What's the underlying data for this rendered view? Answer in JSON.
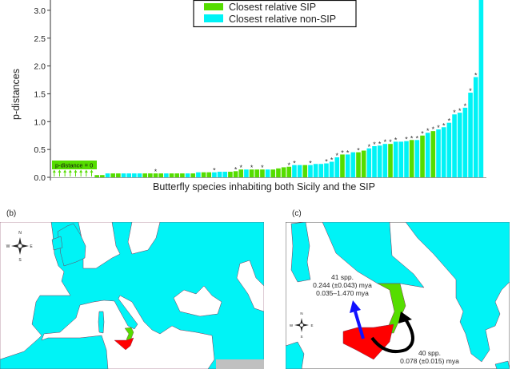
{
  "colors": {
    "sip": "#55dd00",
    "non_sip": "#00f3f6",
    "sicily": "#ff0000",
    "calabria": "#55dd00",
    "arrow_to_sardinia_side": "#1010ff",
    "arrow_to_sip": "#000000",
    "no_data_region": "#c0c0c0"
  },
  "chart_data": {
    "type": "bar",
    "title": "",
    "xlabel": "Butterfly species inhabiting both Sicily and the SIP",
    "ylabel": "p-distances",
    "ylim": [
      0,
      3.2
    ],
    "yticks": [
      "0.0",
      "0.5",
      "1.0",
      "1.5",
      "2.0",
      "2.5",
      "3.0"
    ],
    "grid": false,
    "legend": {
      "placement": "top-center",
      "entries": [
        "Closest relative SIP",
        "Closest relative non-SIP"
      ]
    },
    "zero_annotation": "p-distance = 0",
    "significance_marker": "*",
    "bars": [
      {
        "value": 0,
        "group": "SIP",
        "sig": false
      },
      {
        "value": 0,
        "group": "SIP",
        "sig": false
      },
      {
        "value": 0,
        "group": "SIP",
        "sig": false
      },
      {
        "value": 0,
        "group": "SIP",
        "sig": false
      },
      {
        "value": 0,
        "group": "SIP",
        "sig": false
      },
      {
        "value": 0,
        "group": "SIP",
        "sig": false
      },
      {
        "value": 0,
        "group": "SIP",
        "sig": false
      },
      {
        "value": 0,
        "group": "SIP",
        "sig": false
      },
      {
        "value": 0.04,
        "group": "SIP",
        "sig": false
      },
      {
        "value": 0.04,
        "group": "SIP",
        "sig": false
      },
      {
        "value": 0.07,
        "group": "non-SIP",
        "sig": false
      },
      {
        "value": 0.07,
        "group": "SIP",
        "sig": false
      },
      {
        "value": 0.07,
        "group": "SIP",
        "sig": false
      },
      {
        "value": 0.07,
        "group": "non-SIP",
        "sig": false
      },
      {
        "value": 0.07,
        "group": "non-SIP",
        "sig": false
      },
      {
        "value": 0.07,
        "group": "non-SIP",
        "sig": false
      },
      {
        "value": 0.07,
        "group": "non-SIP",
        "sig": false
      },
      {
        "value": 0.07,
        "group": "SIP",
        "sig": false
      },
      {
        "value": 0.07,
        "group": "SIP",
        "sig": false
      },
      {
        "value": 0.07,
        "group": "SIP",
        "sig": true
      },
      {
        "value": 0.07,
        "group": "SIP",
        "sig": false
      },
      {
        "value": 0.07,
        "group": "non-SIP",
        "sig": false
      },
      {
        "value": 0.07,
        "group": "SIP",
        "sig": false
      },
      {
        "value": 0.07,
        "group": "SIP",
        "sig": false
      },
      {
        "value": 0.07,
        "group": "SIP",
        "sig": false
      },
      {
        "value": 0.07,
        "group": "non-SIP",
        "sig": false
      },
      {
        "value": 0.07,
        "group": "SIP",
        "sig": false
      },
      {
        "value": 0.09,
        "group": "non-SIP",
        "sig": false
      },
      {
        "value": 0.09,
        "group": "SIP",
        "sig": false
      },
      {
        "value": 0.09,
        "group": "SIP",
        "sig": false
      },
      {
        "value": 0.09,
        "group": "non-SIP",
        "sig": true
      },
      {
        "value": 0.1,
        "group": "non-SIP",
        "sig": false
      },
      {
        "value": 0.1,
        "group": "non-SIP",
        "sig": false
      },
      {
        "value": 0.1,
        "group": "SIP",
        "sig": false
      },
      {
        "value": 0.11,
        "group": "SIP",
        "sig": true
      },
      {
        "value": 0.14,
        "group": "SIP",
        "sig": true
      },
      {
        "value": 0.14,
        "group": "non-SIP",
        "sig": false
      },
      {
        "value": 0.14,
        "group": "SIP",
        "sig": true
      },
      {
        "value": 0.14,
        "group": "SIP",
        "sig": false
      },
      {
        "value": 0.14,
        "group": "SIP",
        "sig": true
      },
      {
        "value": 0.14,
        "group": "non-SIP",
        "sig": false
      },
      {
        "value": 0.14,
        "group": "SIP",
        "sig": false
      },
      {
        "value": 0.16,
        "group": "SIP",
        "sig": false
      },
      {
        "value": 0.18,
        "group": "SIP",
        "sig": false
      },
      {
        "value": 0.19,
        "group": "SIP",
        "sig": true
      },
      {
        "value": 0.22,
        "group": "non-SIP",
        "sig": true
      },
      {
        "value": 0.22,
        "group": "non-SIP",
        "sig": false
      },
      {
        "value": 0.22,
        "group": "SIP",
        "sig": false
      },
      {
        "value": 0.22,
        "group": "non-SIP",
        "sig": true
      },
      {
        "value": 0.24,
        "group": "non-SIP",
        "sig": false
      },
      {
        "value": 0.24,
        "group": "non-SIP",
        "sig": false
      },
      {
        "value": 0.25,
        "group": "non-SIP",
        "sig": true
      },
      {
        "value": 0.28,
        "group": "non-SIP",
        "sig": true
      },
      {
        "value": 0.36,
        "group": "non-SIP",
        "sig": true
      },
      {
        "value": 0.41,
        "group": "SIP",
        "sig": true
      },
      {
        "value": 0.41,
        "group": "non-SIP",
        "sig": true
      },
      {
        "value": 0.45,
        "group": "non-SIP",
        "sig": false
      },
      {
        "value": 0.45,
        "group": "SIP",
        "sig": true
      },
      {
        "value": 0.48,
        "group": "SIP",
        "sig": false
      },
      {
        "value": 0.52,
        "group": "non-SIP",
        "sig": true
      },
      {
        "value": 0.56,
        "group": "non-SIP",
        "sig": true
      },
      {
        "value": 0.57,
        "group": "non-SIP",
        "sig": true
      },
      {
        "value": 0.6,
        "group": "non-SIP",
        "sig": true
      },
      {
        "value": 0.6,
        "group": "SIP",
        "sig": true
      },
      {
        "value": 0.64,
        "group": "non-SIP",
        "sig": true
      },
      {
        "value": 0.64,
        "group": "non-SIP",
        "sig": false
      },
      {
        "value": 0.65,
        "group": "non-SIP",
        "sig": true
      },
      {
        "value": 0.67,
        "group": "SIP",
        "sig": true
      },
      {
        "value": 0.67,
        "group": "non-SIP",
        "sig": true
      },
      {
        "value": 0.75,
        "group": "SIP",
        "sig": true
      },
      {
        "value": 0.8,
        "group": "non-SIP",
        "sig": true
      },
      {
        "value": 0.83,
        "group": "SIP",
        "sig": true
      },
      {
        "value": 0.86,
        "group": "non-SIP",
        "sig": true
      },
      {
        "value": 0.9,
        "group": "non-SIP",
        "sig": true
      },
      {
        "value": 0.98,
        "group": "non-SIP",
        "sig": true
      },
      {
        "value": 1.13,
        "group": "non-SIP",
        "sig": true
      },
      {
        "value": 1.16,
        "group": "non-SIP",
        "sig": true
      },
      {
        "value": 1.25,
        "group": "non-SIP",
        "sig": true
      },
      {
        "value": 1.52,
        "group": "non-SIP",
        "sig": true
      },
      {
        "value": 1.8,
        "group": "non-SIP",
        "sig": true
      },
      {
        "value": 3.3,
        "group": "non-SIP",
        "sig": false
      }
    ]
  },
  "panel_b": {
    "label": "(b)",
    "compass": [
      "N",
      "S",
      "W",
      "E"
    ]
  },
  "panel_c": {
    "label": "(c)",
    "compass": [
      "N",
      "S",
      "W",
      "E"
    ],
    "northward": {
      "count": "41 spp.",
      "mean": "0.244 (±0.043) mya",
      "range": "0.035–1.470 mya"
    },
    "to_sip": {
      "count": "40 spp.",
      "mean": "0.078 (±0.015) mya"
    }
  }
}
